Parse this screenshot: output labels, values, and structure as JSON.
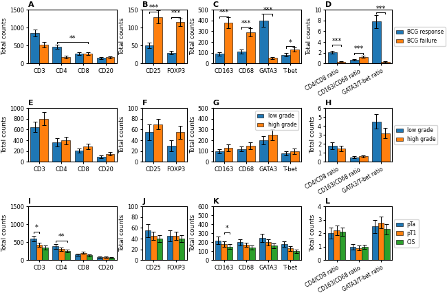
{
  "chart_data": [
    {
      "type": "bar",
      "title": "A",
      "categories": [
        "CD3",
        "CD4",
        "CD8",
        "CD20"
      ],
      "series": [
        {
          "values": [
            850,
            470,
            280,
            150
          ],
          "errors": [
            90,
            60,
            40,
            25
          ]
        },
        {
          "values": [
            530,
            175,
            280,
            170
          ],
          "errors": [
            80,
            40,
            35,
            30
          ]
        }
      ],
      "ylim": [
        0,
        1500
      ],
      "yticks": [
        0,
        500,
        1000,
        1500
      ],
      "ylabel": "Total counts",
      "annotations": [
        {
          "text": "**",
          "y": 600,
          "from": {
            "category": "CD4",
            "series": 0
          },
          "to": {
            "category": "CD8",
            "series": 1
          }
        }
      ]
    },
    {
      "type": "bar",
      "title": "B",
      "categories": [
        "CD25",
        "FOXP3"
      ],
      "series": [
        {
          "values": [
            50,
            30
          ],
          "errors": [
            8,
            5
          ]
        },
        {
          "values": [
            130,
            115
          ],
          "errors": [
            18,
            10
          ]
        }
      ],
      "ylim": [
        0,
        150
      ],
      "yticks": [
        0,
        50,
        100,
        150
      ],
      "ylabel": "Total counts",
      "annotations": [
        {
          "text": "***",
          "y": 145,
          "from": {
            "category": "CD25",
            "series": 0
          },
          "to": {
            "category": "CD25",
            "series": 1
          }
        },
        {
          "text": "***",
          "y": 130,
          "from": {
            "category": "FOXP3",
            "series": 0
          },
          "to": {
            "category": "FOXP3",
            "series": 1
          }
        }
      ]
    },
    {
      "type": "bar",
      "title": "C",
      "categories": [
        "CD163",
        "CD68",
        "GATA3",
        "T-bet"
      ],
      "series": [
        {
          "values": [
            90,
            110,
            400,
            80
          ],
          "errors": [
            15,
            20,
            60,
            15
          ]
        },
        {
          "values": [
            380,
            290,
            50,
            130
          ],
          "errors": [
            50,
            40,
            10,
            20
          ]
        }
      ],
      "ylim": [
        0,
        500
      ],
      "yticks": [
        0,
        100,
        200,
        300,
        400,
        500
      ],
      "ylabel": "Total counts",
      "annotations": [
        {
          "text": "***",
          "y": 440,
          "from": {
            "category": "CD163",
            "series": 0
          },
          "to": {
            "category": "CD163",
            "series": 1
          }
        },
        {
          "text": "***",
          "y": 340,
          "from": {
            "category": "CD68",
            "series": 0
          },
          "to": {
            "category": "CD68",
            "series": 1
          }
        },
        {
          "text": "***",
          "y": 460,
          "from": {
            "category": "GATA3",
            "series": 0
          },
          "to": {
            "category": "GATA3",
            "series": 1
          }
        },
        {
          "text": "*",
          "y": 160,
          "from": {
            "category": "T-bet",
            "series": 0
          },
          "to": {
            "category": "T-bet",
            "series": 1
          }
        }
      ]
    },
    {
      "type": "bar",
      "title": "D",
      "categories": [
        "CD4/CD8 ratio",
        "CD163/CD68 ratio",
        "GATA3/T-bet ratio"
      ],
      "series": [
        {
          "name": "BCG response",
          "values": [
            2.1,
            0.7,
            7.8
          ],
          "errors": [
            0.3,
            0.15,
            1.2
          ]
        },
        {
          "name": "BCG failure",
          "values": [
            0.35,
            1.2,
            0.3
          ],
          "errors": [
            0.1,
            0.2,
            0.08
          ]
        }
      ],
      "ylim": [
        0,
        10
      ],
      "yticks": [
        0,
        2,
        4,
        6,
        8,
        10
      ],
      "ylabel": "Total counts",
      "legend": "right",
      "annotations": [
        {
          "text": "***",
          "y": 3.5,
          "from": {
            "category": "CD4/CD8 ratio",
            "series": 0
          },
          "to": {
            "category": "CD4/CD8 ratio",
            "series": 1
          }
        },
        {
          "text": "***",
          "y": 2.0,
          "from": {
            "category": "CD163/CD68 ratio",
            "series": 0
          },
          "to": {
            "category": "CD163/CD68 ratio",
            "series": 1
          }
        },
        {
          "text": "***",
          "y": 9.5,
          "from": {
            "category": "GATA3/T-bet ratio",
            "series": 0
          },
          "to": {
            "category": "GATA3/T-bet ratio",
            "series": 1
          }
        }
      ]
    },
    {
      "type": "bar",
      "title": "E",
      "categories": [
        "CD3",
        "CD4",
        "CD8",
        "CD20"
      ],
      "series": [
        {
          "values": [
            650,
            360,
            210,
            95
          ],
          "errors": [
            100,
            80,
            40,
            30
          ]
        },
        {
          "values": [
            800,
            395,
            285,
            150
          ],
          "errors": [
            120,
            70,
            50,
            35
          ]
        }
      ],
      "ylim": [
        0,
        1000
      ],
      "yticks": [
        0,
        200,
        400,
        600,
        800,
        1000
      ],
      "ylabel": "Total counts"
    },
    {
      "type": "bar",
      "title": "F",
      "categories": [
        "CD25",
        "FOXP3"
      ],
      "series": [
        {
          "values": [
            55,
            30
          ],
          "errors": [
            15,
            10
          ]
        },
        {
          "values": [
            70,
            55
          ],
          "errors": [
            10,
            12
          ]
        }
      ],
      "ylim": [
        0,
        100
      ],
      "yticks": [
        0,
        20,
        40,
        60,
        80,
        100
      ],
      "ylabel": "Total counts"
    },
    {
      "type": "bar",
      "title": "G",
      "categories": [
        "CD163",
        "CD68",
        "GATA3",
        "T-bet"
      ],
      "series": [
        {
          "name": "low grade",
          "values": [
            100,
            120,
            200,
            80
          ],
          "errors": [
            20,
            25,
            40,
            20
          ]
        },
        {
          "name": "high grade",
          "values": [
            130,
            150,
            250,
            100
          ],
          "errors": [
            30,
            30,
            50,
            25
          ]
        }
      ],
      "ylim": [
        0,
        500
      ],
      "yticks": [
        0,
        100,
        200,
        300,
        400,
        500
      ],
      "ylabel": "Total counts",
      "legend": "upper right"
    },
    {
      "type": "bar",
      "title": "H",
      "categories": [
        "CD4/CD8 ratio",
        "CD163/CD68 ratio",
        "GATA3/T-bet ratio"
      ],
      "series": [
        {
          "name": "low grade",
          "values": [
            1.8,
            0.5,
            4.5
          ],
          "errors": [
            0.4,
            0.1,
            0.8
          ]
        },
        {
          "name": "high grade",
          "values": [
            1.5,
            0.6,
            3.2
          ],
          "errors": [
            0.3,
            0.12,
            0.6
          ]
        }
      ],
      "ylim": [
        0,
        6
      ],
      "yticks": [
        0,
        1,
        2,
        3,
        4,
        5,
        6
      ],
      "ylabel": "Total counts",
      "legend": "right"
    },
    {
      "type": "bar",
      "title": "I",
      "categories": [
        "CD3",
        "CD4",
        "CD8",
        "CD20"
      ],
      "series": [
        {
          "values": [
            600,
            380,
            150,
            80
          ],
          "errors": [
            80,
            60,
            25,
            15
          ]
        },
        {
          "values": [
            430,
            310,
            200,
            90
          ],
          "errors": [
            60,
            50,
            30,
            18
          ]
        },
        {
          "values": [
            350,
            250,
            130,
            70
          ],
          "errors": [
            50,
            40,
            20,
            12
          ]
        }
      ],
      "ylim": [
        0,
        1500
      ],
      "yticks": [
        0,
        500,
        1000,
        1500
      ],
      "ylabel": "Total counts",
      "annotations": [
        {
          "text": "*",
          "y": 800,
          "from": {
            "category": "CD3",
            "series": 0
          },
          "to": {
            "category": "CD3",
            "series": 1
          }
        },
        {
          "text": "**",
          "y": 550,
          "from": {
            "category": "CD4",
            "series": 0
          },
          "to": {
            "category": "CD4",
            "series": 2
          }
        }
      ]
    },
    {
      "type": "bar",
      "title": "J",
      "categories": [
        "CD25",
        "FOXP3"
      ],
      "series": [
        {
          "values": [
            55,
            45
          ],
          "errors": [
            12,
            10
          ]
        },
        {
          "values": [
            45,
            45
          ],
          "errors": [
            8,
            8
          ]
        },
        {
          "values": [
            40,
            40
          ],
          "errors": [
            7,
            7
          ]
        }
      ],
      "ylim": [
        0,
        100
      ],
      "yticks": [
        0,
        20,
        40,
        60,
        80,
        100
      ],
      "ylabel": "Total counts"
    },
    {
      "type": "bar",
      "title": "K",
      "categories": [
        "CD163",
        "CD68",
        "GATA3",
        "T-bet"
      ],
      "series": [
        {
          "values": [
            220,
            200,
            250,
            180
          ],
          "errors": [
            40,
            35,
            45,
            30
          ]
        },
        {
          "values": [
            180,
            170,
            200,
            130
          ],
          "errors": [
            30,
            25,
            35,
            25
          ]
        },
        {
          "values": [
            150,
            140,
            160,
            100
          ],
          "errors": [
            25,
            20,
            28,
            20
          ]
        }
      ],
      "ylim": [
        0,
        600
      ],
      "yticks": [
        0,
        100,
        200,
        300,
        400,
        500,
        600
      ],
      "ylabel": "Total counts",
      "annotations": [
        {
          "text": "*",
          "y": 310,
          "from": {
            "category": "CD163",
            "series": 1
          },
          "to": {
            "category": "CD163",
            "series": 2
          }
        }
      ]
    },
    {
      "type": "bar",
      "title": "L",
      "categories": [
        "CD4/CD8 ratio",
        "CD163/CD68 ratio",
        "GATA3/T-bet ratio"
      ],
      "series": [
        {
          "name": "pTa",
          "values": [
            2.0,
            1.0,
            2.5
          ],
          "errors": [
            0.4,
            0.2,
            0.5
          ]
        },
        {
          "name": "pT1",
          "values": [
            2.2,
            0.9,
            2.8
          ],
          "errors": [
            0.35,
            0.18,
            0.45
          ]
        },
        {
          "name": "CIS",
          "values": [
            2.1,
            1.0,
            2.3
          ],
          "errors": [
            0.3,
            0.15,
            0.4
          ]
        }
      ],
      "ylim": [
        0,
        4
      ],
      "yticks": [
        0,
        1,
        2,
        3,
        4
      ],
      "ylabel": "Total counts",
      "legend": "right"
    }
  ]
}
